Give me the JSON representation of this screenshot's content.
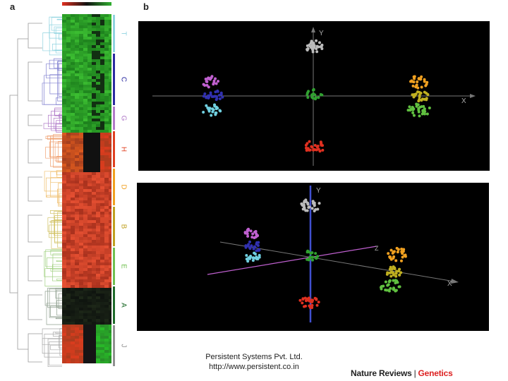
{
  "figure": {
    "panel_a_label": "a",
    "panel_b_label": "b",
    "clusters": [
      {
        "letter": "T",
        "color": "#8fd3e0"
      },
      {
        "letter": "C",
        "color": "#2a2aa0"
      },
      {
        "letter": "G",
        "color": "#b07ac8"
      },
      {
        "letter": "H",
        "color": "#e04020"
      },
      {
        "letter": "D",
        "color": "#f0a020"
      },
      {
        "letter": "B",
        "color": "#c0a020"
      },
      {
        "letter": "E",
        "color": "#70c050"
      },
      {
        "letter": "A",
        "color": "#1e6b2a"
      },
      {
        "letter": "J",
        "color": "#909090"
      }
    ],
    "top_plot": {
      "x_label": "X",
      "y_label": "Y"
    },
    "bottom_plot": {
      "x_label": "X",
      "y_label": "Y",
      "z_label": "Z"
    }
  },
  "chart_data": {
    "type": "scatter",
    "title": "",
    "series": [
      {
        "name": "grey",
        "color": "#bbbbbb"
      },
      {
        "name": "magenta",
        "color": "#c060d0"
      },
      {
        "name": "blue",
        "color": "#3030b0"
      },
      {
        "name": "cyan",
        "color": "#70d0e0"
      },
      {
        "name": "center-green",
        "color": "#30a030"
      },
      {
        "name": "orange",
        "color": "#f0a020"
      },
      {
        "name": "olive",
        "color": "#c0b020"
      },
      {
        "name": "green",
        "color": "#60c040"
      },
      {
        "name": "red",
        "color": "#e03020"
      }
    ]
  },
  "footer": {
    "company": "Persistent Systems Pvt. Ltd.",
    "url": "http://www.persistent.co.in",
    "journal_part1": "Nature Reviews",
    "separator": "|",
    "journal_part2": "Genetics"
  }
}
